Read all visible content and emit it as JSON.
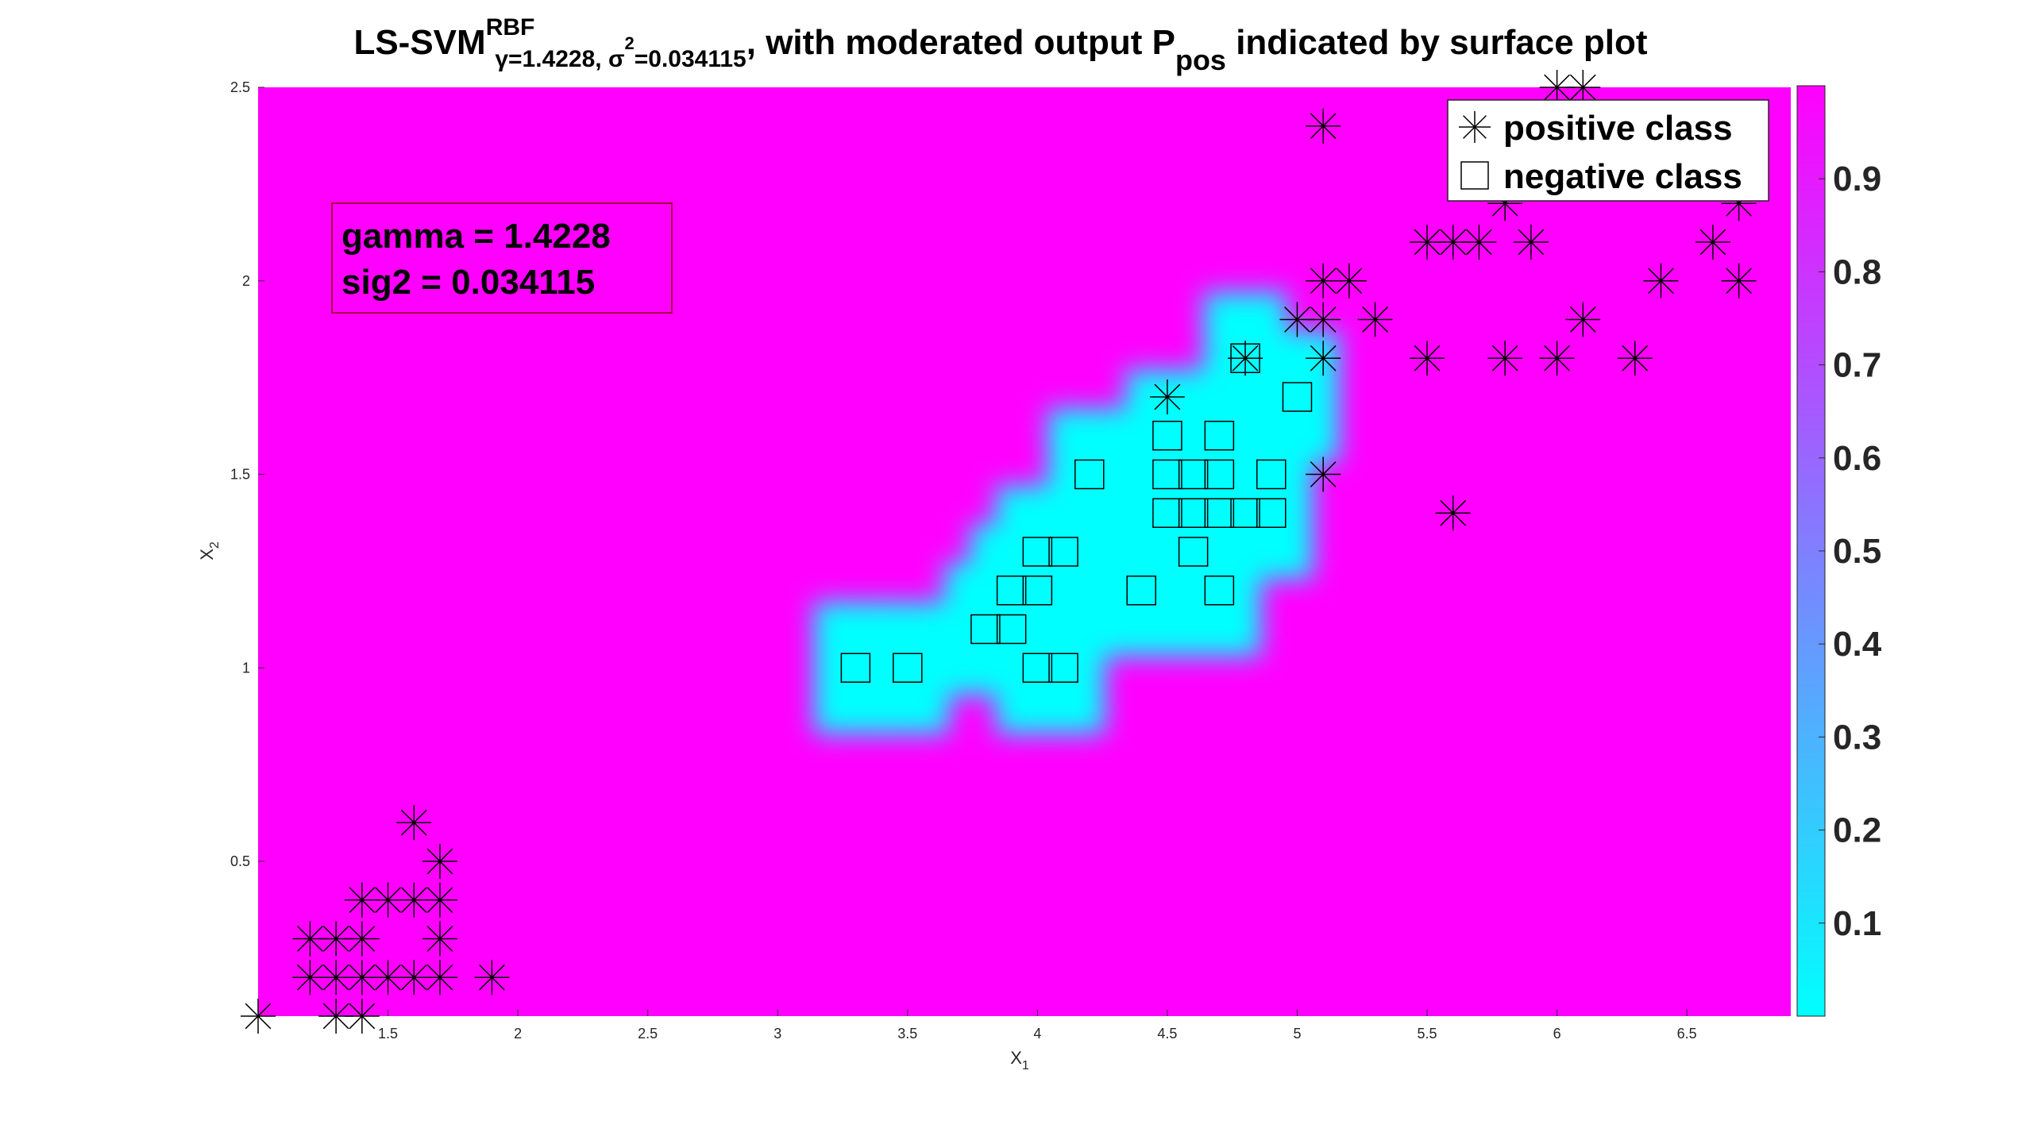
{
  "chart_data": {
    "type": "scatter",
    "title": {
      "prefix": "LS-SVM",
      "sup": "RBF",
      "sub": "γ=1.4228, σ",
      "sub_sup": "2",
      "sub_rest": "=0.034115",
      "mid": ", with moderated output P",
      "mid_sub": "pos",
      "rest": " indicated by surface plot"
    },
    "xlabel": {
      "base": "X",
      "sub": "1"
    },
    "ylabel": {
      "base": "X",
      "sub": "2"
    },
    "xlim": [
      1.0,
      6.9
    ],
    "ylim": [
      0.1,
      2.5
    ],
    "x_ticks": [
      {
        "value": 1.5,
        "label": "1.5"
      },
      {
        "value": 2,
        "label": "2"
      },
      {
        "value": 2.5,
        "label": "2.5"
      },
      {
        "value": 3,
        "label": "3"
      },
      {
        "value": 3.5,
        "label": "3.5"
      },
      {
        "value": 4,
        "label": "4"
      },
      {
        "value": 4.5,
        "label": "4.5"
      },
      {
        "value": 5,
        "label": "5"
      },
      {
        "value": 5.5,
        "label": "5.5"
      },
      {
        "value": 6,
        "label": "6"
      },
      {
        "value": 6.5,
        "label": "6.5"
      }
    ],
    "y_ticks": [
      {
        "value": 0.5,
        "label": "0.5"
      },
      {
        "value": 1,
        "label": "1"
      },
      {
        "value": 1.5,
        "label": "1.5"
      },
      {
        "value": 2,
        "label": "2"
      },
      {
        "value": 2.5,
        "label": "2.5"
      }
    ],
    "surface": {
      "colormap": "cool",
      "background_value": 1.0,
      "negative_region_value": 0.0
    },
    "colorbar": {
      "range": [
        0,
        1
      ],
      "ticks": [
        {
          "value": 0.1,
          "label": "0.1"
        },
        {
          "value": 0.2,
          "label": "0.2"
        },
        {
          "value": 0.3,
          "label": "0.3"
        },
        {
          "value": 0.4,
          "label": "0.4"
        },
        {
          "value": 0.5,
          "label": "0.5"
        },
        {
          "value": 0.6,
          "label": "0.6"
        },
        {
          "value": 0.7,
          "label": "0.7"
        },
        {
          "value": 0.8,
          "label": "0.8"
        },
        {
          "value": 0.9,
          "label": "0.9"
        }
      ]
    },
    "annotation": {
      "lines": [
        "gamma = 1.4228",
        "sig2 = 0.034115"
      ]
    },
    "legend": {
      "placement": "top-right",
      "entries": [
        {
          "marker": "asterisk",
          "label": "positive class"
        },
        {
          "marker": "square",
          "label": "negative class"
        }
      ]
    },
    "series": [
      {
        "name": "positive class",
        "marker": "asterisk",
        "points": [
          [
            1.0,
            0.1
          ],
          [
            1.3,
            0.1
          ],
          [
            1.4,
            0.1
          ],
          [
            1.2,
            0.2
          ],
          [
            1.3,
            0.2
          ],
          [
            1.4,
            0.2
          ],
          [
            1.5,
            0.2
          ],
          [
            1.6,
            0.2
          ],
          [
            1.7,
            0.2
          ],
          [
            1.9,
            0.2
          ],
          [
            1.2,
            0.3
          ],
          [
            1.3,
            0.3
          ],
          [
            1.4,
            0.3
          ],
          [
            1.7,
            0.3
          ],
          [
            1.4,
            0.4
          ],
          [
            1.5,
            0.4
          ],
          [
            1.6,
            0.4
          ],
          [
            1.7,
            0.4
          ],
          [
            1.7,
            0.5
          ],
          [
            1.6,
            0.6
          ],
          [
            4.5,
            1.7
          ],
          [
            4.8,
            1.8
          ],
          [
            5.1,
            1.5
          ],
          [
            5.6,
            1.4
          ],
          [
            5.0,
            1.9
          ],
          [
            5.1,
            1.9
          ],
          [
            5.3,
            1.9
          ],
          [
            5.1,
            2.0
          ],
          [
            5.2,
            2.0
          ],
          [
            5.1,
            1.8
          ],
          [
            5.5,
            1.8
          ],
          [
            5.8,
            1.8
          ],
          [
            6.0,
            1.8
          ],
          [
            6.3,
            1.8
          ],
          [
            5.5,
            2.1
          ],
          [
            5.6,
            2.1
          ],
          [
            5.7,
            2.1
          ],
          [
            5.9,
            2.1
          ],
          [
            6.6,
            2.1
          ],
          [
            5.8,
            2.2
          ],
          [
            6.7,
            2.2
          ],
          [
            6.4,
            2.0
          ],
          [
            6.7,
            2.0
          ],
          [
            6.1,
            1.9
          ],
          [
            5.1,
            2.4
          ],
          [
            6.0,
            2.5
          ],
          [
            6.1,
            2.5
          ]
        ]
      },
      {
        "name": "negative class",
        "marker": "square",
        "points": [
          [
            3.3,
            1.0
          ],
          [
            3.5,
            1.0
          ],
          [
            4.0,
            1.0
          ],
          [
            4.1,
            1.0
          ],
          [
            3.8,
            1.1
          ],
          [
            3.9,
            1.1
          ],
          [
            3.9,
            1.2
          ],
          [
            4.0,
            1.2
          ],
          [
            4.4,
            1.2
          ],
          [
            4.7,
            1.2
          ],
          [
            4.0,
            1.3
          ],
          [
            4.1,
            1.3
          ],
          [
            4.6,
            1.3
          ],
          [
            4.5,
            1.4
          ],
          [
            4.6,
            1.4
          ],
          [
            4.7,
            1.4
          ],
          [
            4.8,
            1.4
          ],
          [
            4.9,
            1.4
          ],
          [
            4.2,
            1.5
          ],
          [
            4.5,
            1.5
          ],
          [
            4.6,
            1.5
          ],
          [
            4.7,
            1.5
          ],
          [
            4.9,
            1.5
          ],
          [
            4.5,
            1.6
          ],
          [
            4.7,
            1.6
          ],
          [
            5.0,
            1.7
          ],
          [
            4.8,
            1.8
          ]
        ]
      }
    ]
  }
}
